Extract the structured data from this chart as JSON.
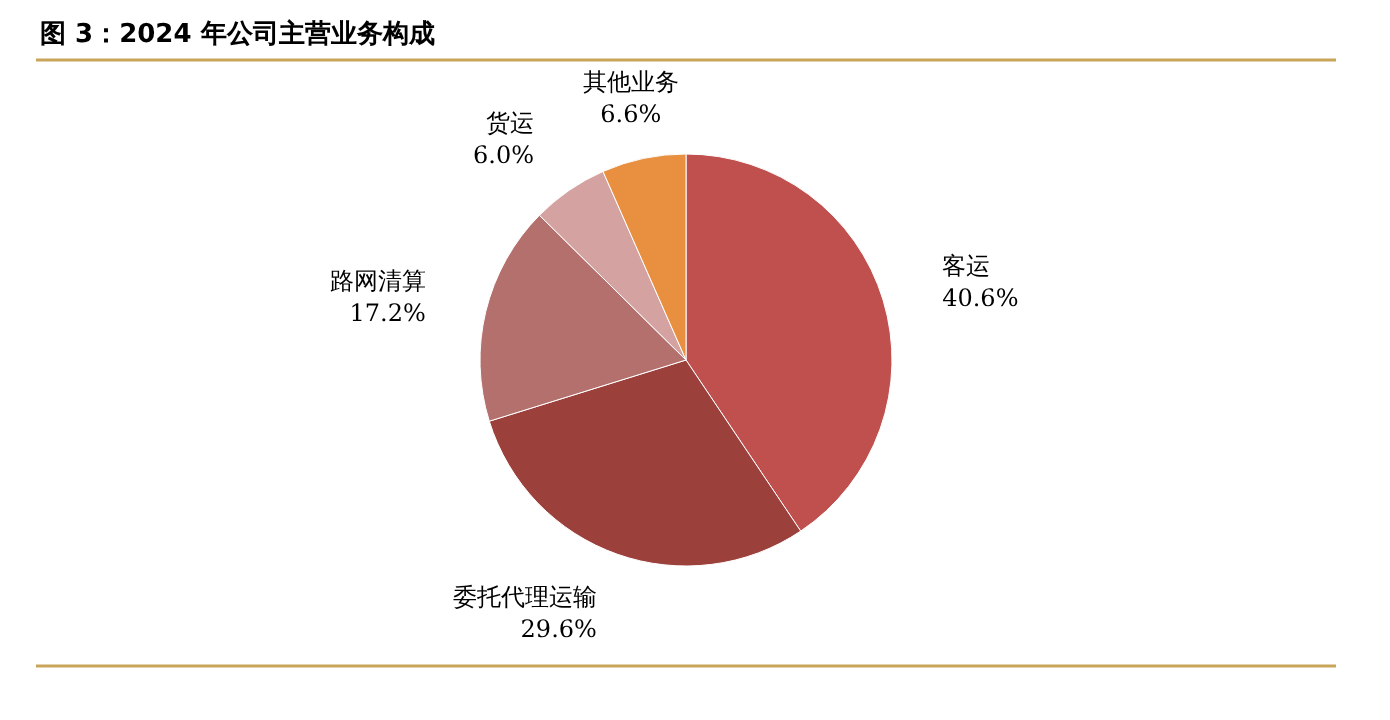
{
  "chart_data": {
    "type": "pie",
    "title": "图 3：2024 年公司主营业务构成",
    "categories": [
      "客运",
      "委托代理运输",
      "路网清算",
      "货运",
      "其他业务"
    ],
    "values": [
      40.6,
      29.6,
      17.2,
      6.0,
      6.6
    ],
    "value_labels": [
      "40.6%",
      "29.6%",
      "17.2%",
      "6.0%",
      "6.6%"
    ],
    "colors": [
      "#c0504d",
      "#9c403c",
      "#b4706d",
      "#d4a2a1",
      "#e8903f"
    ]
  }
}
